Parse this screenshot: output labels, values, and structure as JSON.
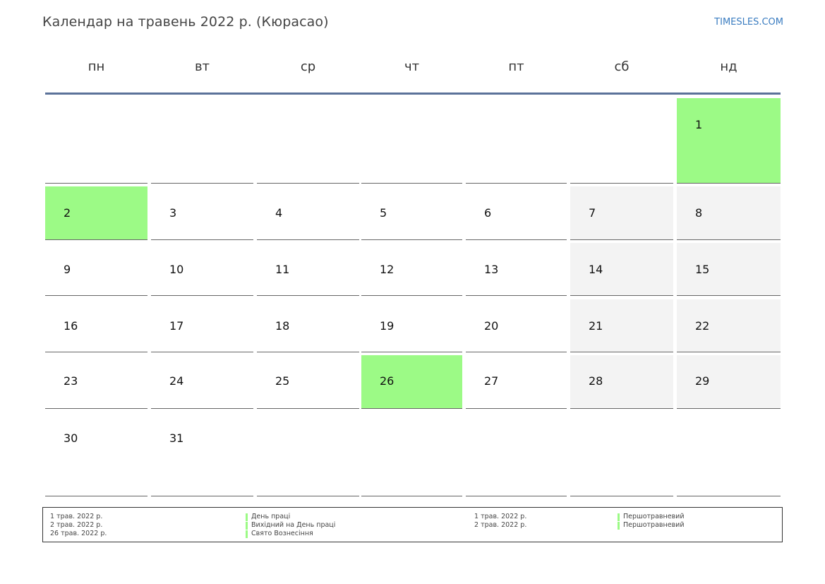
{
  "header": {
    "title": "Календар на травень 2022 р. (Кюрасао)",
    "site": "TIMESLES.COM"
  },
  "weekdays": [
    "пн",
    "вт",
    "ср",
    "чт",
    "пт",
    "сб",
    "нд"
  ],
  "colors": {
    "holiday": "#9cfa86",
    "weekend": "#f3f3f3",
    "header_rule": "#5b7299",
    "link": "#3a7cc0"
  },
  "calendar": {
    "days": [
      "1",
      "2",
      "3",
      "4",
      "5",
      "6",
      "7",
      "8",
      "9",
      "10",
      "11",
      "12",
      "13",
      "14",
      "15",
      "16",
      "17",
      "18",
      "19",
      "20",
      "21",
      "22",
      "23",
      "24",
      "25",
      "26",
      "27",
      "28",
      "29",
      "30",
      "31"
    ],
    "holidays": [
      "1",
      "2",
      "26"
    ]
  },
  "legend": {
    "left": [
      {
        "date": "1 трав. 2022 р.",
        "name": "День праці"
      },
      {
        "date": "2 трав. 2022 р.",
        "name": "Вихідний на День праці"
      },
      {
        "date": "26 трав. 2022 р.",
        "name": "Свято Вознесіння"
      }
    ],
    "right": [
      {
        "date": "1 трав. 2022 р.",
        "name": "Першотравневий"
      },
      {
        "date": "2 трав. 2022 р.",
        "name": "Першотравневий"
      }
    ]
  }
}
